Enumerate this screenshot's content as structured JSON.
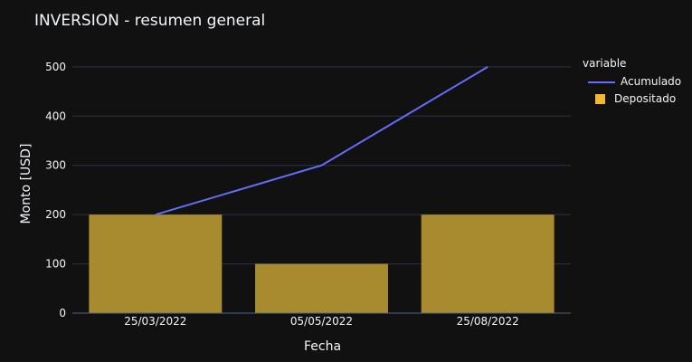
{
  "chart_data": {
    "type": "bar",
    "title": "INVERSION - resumen general",
    "xlabel": "Fecha",
    "ylabel": "Monto [USD]",
    "categories": [
      "25/03/2022",
      "05/05/2022",
      "25/08/2022"
    ],
    "ylim": [
      0,
      520
    ],
    "yticks": [
      0,
      100,
      200,
      300,
      400,
      500
    ],
    "grid": true,
    "legend": {
      "title": "variable",
      "position": "right"
    },
    "series": [
      {
        "name": "Depositado",
        "kind": "bar",
        "color": "#f2b830",
        "values": [
          200,
          100,
          200
        ]
      },
      {
        "name": "Acumulado",
        "kind": "line",
        "color": "#636efa",
        "values": [
          200,
          300,
          500
        ]
      }
    ]
  },
  "colors": {
    "background": "#111111",
    "grid": "#283442",
    "bar_fill": "#a88a2f"
  }
}
